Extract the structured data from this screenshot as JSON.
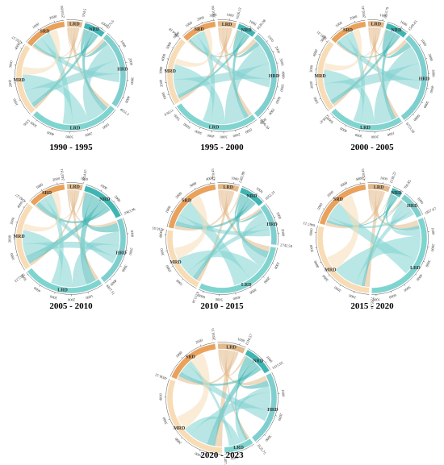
{
  "colors": {
    "LRD": "#7fd4cf",
    "MRD": "#f8dcb6",
    "SRD": "#e9a15b",
    "NRD": "#e2b98a",
    "HRD": "#7fcfcf",
    "EHRD": "#3fb5b3"
  },
  "panels": [
    {
      "caption": "1990 - 1995",
      "segments": [
        {
          "name": "LRD",
          "value": 5356,
          "end_label": "5356",
          "color": "LRD",
          "ticks": [
            "1000",
            "2000",
            "3000",
            "4000",
            "5000"
          ]
        },
        {
          "name": "MRD",
          "value": 4292.57,
          "end_label": "4292.57",
          "color": "MRD",
          "ticks": [
            "1000",
            "2000",
            "3000",
            "4000"
          ]
        },
        {
          "name": "SRD",
          "value": 2550.68,
          "end_label": "2550.68",
          "color": "SRD",
          "ticks": [
            "1000",
            "2000"
          ]
        },
        {
          "name": "LRD",
          "value": 934.5,
          "end_label": "934.5",
          "color": "NRD",
          "ticks": []
        },
        {
          "name": "NRD",
          "value": 1271.6,
          "end_label": "1271.6",
          "color": "EHRD",
          "ticks": [
            "1000"
          ]
        },
        {
          "name": "HRD",
          "value": 4651.3,
          "end_label": "4651.3",
          "color": "HRD",
          "ticks": [
            "1000",
            "2000",
            "3000",
            "4000"
          ]
        }
      ]
    },
    {
      "caption": "1995 - 2000",
      "segments": [
        {
          "name": "LRD",
          "value": 7728.9,
          "end_label": "7728.9",
          "color": "LRD",
          "ticks": [
            "1000",
            "2000",
            "3000",
            "4000",
            "5000",
            "6000",
            "7000"
          ]
        },
        {
          "name": "MRD",
          "value": 6064.18,
          "end_label": "6064.18",
          "color": "MRD",
          "ticks": [
            "1000",
            "2000",
            "3000",
            "4000",
            "5000",
            "6000"
          ]
        },
        {
          "name": "SRD",
          "value": 3101.66,
          "end_label": "3101.66",
          "color": "SRD",
          "ticks": [
            "1000",
            "2000",
            "3000"
          ]
        },
        {
          "name": "LRD",
          "value": 1636.13,
          "end_label": "1636.13",
          "color": "NRD",
          "ticks": [
            "1000"
          ]
        },
        {
          "name": "NRD",
          "value": 1636.08,
          "end_label": "1636.08",
          "color": "EHRD",
          "ticks": [
            "1000"
          ]
        },
        {
          "name": "HRD",
          "value": 8106.39,
          "end_label": "8106.39",
          "color": "HRD",
          "ticks": [
            "1000",
            "2000",
            "3000",
            "4000",
            "5000",
            "6000",
            "7000",
            "8000"
          ]
        }
      ]
    },
    {
      "caption": "2000 - 2005",
      "segments": [
        {
          "name": "LRD",
          "value": 5338.47,
          "end_label": "5338.47",
          "color": "LRD",
          "ticks": [
            "1000",
            "2000",
            "3000",
            "4000",
            "5000"
          ]
        },
        {
          "name": "MRD",
          "value": 5141.31,
          "end_label": "5141.31",
          "color": "MRD",
          "ticks": [
            "1000",
            "2000",
            "3000",
            "4000",
            "5000"
          ]
        },
        {
          "name": "SRD",
          "value": 2695.45,
          "end_label": "2695.45",
          "color": "SRD",
          "ticks": [
            "1000",
            "2000"
          ]
        },
        {
          "name": "LRD",
          "value": 1163.79,
          "end_label": "1163.79",
          "color": "NRD",
          "ticks": [
            "1000"
          ]
        },
        {
          "name": "NRD",
          "value": 1549.43,
          "end_label": "1549.43",
          "color": "EHRD",
          "ticks": [
            "1000"
          ]
        },
        {
          "name": "HRD",
          "value": 6723.38,
          "end_label": "6723.38",
          "color": "HRD",
          "ticks": [
            "1000",
            "2000",
            "3000",
            "4000",
            "5000",
            "6000"
          ]
        }
      ]
    },
    {
      "caption": "2005 - 2010",
      "segments": [
        {
          "name": "LRD",
          "value": 5152.23,
          "end_label": "5152.23",
          "color": "LRD",
          "ticks": [
            "1000",
            "2000",
            "3000",
            "4000",
            "5000"
          ]
        },
        {
          "name": "MRD",
          "value": 4342.57,
          "end_label": "4342.57",
          "color": "MRD",
          "ticks": [
            "1000",
            "2000",
            "3000",
            "4000"
          ]
        },
        {
          "name": "SRD",
          "value": 2407.81,
          "end_label": "2407.81",
          "color": "SRD",
          "ticks": [
            "1000",
            "2000"
          ]
        },
        {
          "name": "LRD",
          "value": 1014.97,
          "end_label": "1014.97",
          "color": "NRD",
          "ticks": [
            "1000"
          ]
        },
        {
          "name": "NRD",
          "value": 2963.96,
          "end_label": "2963.96",
          "color": "EHRD",
          "ticks": [
            "1000",
            "2000"
          ]
        },
        {
          "name": "HRD",
          "value": 4407.51,
          "end_label": "4407.51",
          "color": "HRD",
          "ticks": [
            "1000",
            "2000",
            "3000",
            "4000"
          ]
        }
      ]
    },
    {
      "caption": "2010 - 2015",
      "segments": [
        {
          "name": "LRD",
          "value": 6313.34,
          "end_label": "6313.34",
          "color": "LRD",
          "ticks": [
            "1000",
            "2000",
            "3000",
            "4000",
            "5000",
            "6000"
          ]
        },
        {
          "name": "MRD",
          "value": 4310.55,
          "end_label": "4310.55",
          "color": "MRD",
          "ticks": [
            "1000",
            "2000",
            "3000",
            "4000"
          ]
        },
        {
          "name": "SRD",
          "value": 4270.45,
          "end_label": "4270.45",
          "color": "SRD",
          "ticks": [
            "1000",
            "2000",
            "3000",
            "4000"
          ]
        },
        {
          "name": "LRD",
          "value": 1382.89,
          "end_label": "1382.89",
          "color": "NRD",
          "ticks": [
            "1000"
          ]
        },
        {
          "name": "NRD",
          "value": 1652.31,
          "end_label": "1652.31",
          "color": "EHRD",
          "ticks": [
            "1000"
          ]
        },
        {
          "name": "HRD",
          "value": 2742.58,
          "end_label": "2742.58",
          "color": "HRD",
          "ticks": [
            "1000",
            "2000"
          ]
        }
      ]
    },
    {
      "caption": "2015 - 2020",
      "segments": [
        {
          "name": "LRD",
          "value": 7295.34,
          "end_label": "7295.34",
          "color": "LRD",
          "ticks": [
            "1000",
            "2000",
            "3000",
            "4000",
            "5000",
            "6000",
            "7000"
          ]
        },
        {
          "name": "MRD",
          "value": 6467.13,
          "end_label": "6467.13",
          "color": "MRD",
          "ticks": [
            "1000",
            "2000",
            "3000",
            "4000",
            "5000",
            "6000"
          ]
        },
        {
          "name": "SRD",
          "value": 4320.45,
          "end_label": "4320.45",
          "color": "SRD",
          "ticks": [
            "1000",
            "2000",
            "3000",
            "4000"
          ]
        },
        {
          "name": "LRD",
          "value": 1538.22,
          "end_label": "1538.22",
          "color": "NRD",
          "ticks": [
            "1000"
          ]
        },
        {
          "name": "NRD",
          "value": 760.85,
          "end_label": "760.85",
          "color": "EHRD",
          "ticks": []
        },
        {
          "name": "HRD",
          "value": 1857.67,
          "end_label": "1857.67",
          "color": "HRD",
          "ticks": [
            "1000"
          ]
        }
      ]
    },
    {
      "caption": "2020 - 2023",
      "segments": [
        {
          "name": "LRD",
          "value": 1407.61,
          "end_label": "1407.61",
          "color": "LRD",
          "ticks": [
            "1000"
          ]
        },
        {
          "name": "MRD",
          "value": 4836.12,
          "end_label": "4836.12",
          "color": "MRD",
          "ticks": [
            "1000",
            "2000",
            "3000",
            "4000"
          ]
        },
        {
          "name": "SRD",
          "value": 2650.15,
          "end_label": "2650.15",
          "color": "SRD",
          "ticks": [
            "1000",
            "2000"
          ]
        },
        {
          "name": "LRD",
          "value": 1310.57,
          "end_label": "1310.57",
          "color": "NRD",
          "ticks": [
            "1000"
          ]
        },
        {
          "name": "NRD",
          "value": 1415.05,
          "end_label": "1415.05",
          "color": "EHRD",
          "ticks": [
            "1000"
          ]
        },
        {
          "name": "HRD",
          "value": 3525.75,
          "end_label": "3525.75",
          "color": "HRD",
          "ticks": [
            "1000",
            "2000",
            "3000"
          ]
        }
      ]
    }
  ]
}
